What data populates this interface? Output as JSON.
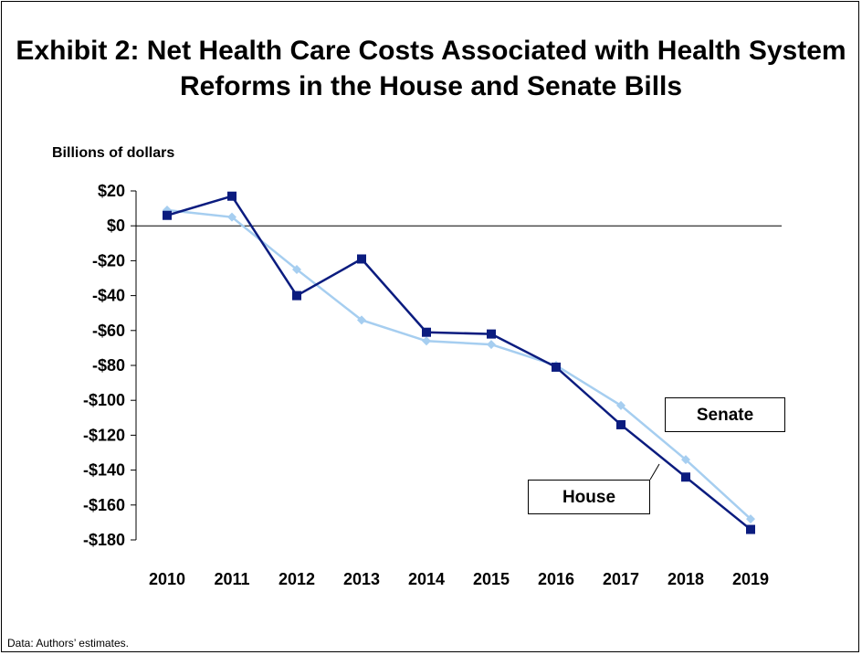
{
  "chart_data": {
    "type": "line",
    "title": "Exhibit 2: Net Health Care Costs Associated with Health System Reforms in the House and Senate Bills",
    "ylabel": "Billions of dollars",
    "xlabel": "",
    "x": [
      "2010",
      "2011",
      "2012",
      "2013",
      "2014",
      "2015",
      "2016",
      "2017",
      "2018",
      "2019"
    ],
    "ylim": [
      -180,
      20
    ],
    "yticks": [
      20,
      0,
      -20,
      -40,
      -60,
      -80,
      -100,
      -120,
      -140,
      -160,
      -180
    ],
    "ytick_labels": [
      "$20",
      "$0",
      "-$20",
      "-$40",
      "-$60",
      "-$80",
      "-$100",
      "-$120",
      "-$140",
      "-$160",
      "-$180"
    ],
    "grid": false,
    "zero_line": true,
    "series": [
      {
        "name": "Senate",
        "values": [
          9,
          5,
          -25,
          -54,
          -66,
          -68,
          -80,
          -103,
          -134,
          -168
        ],
        "color": "#a6cef0",
        "marker": "diamond"
      },
      {
        "name": "House",
        "values": [
          6,
          17,
          -40,
          -19,
          -61,
          -62,
          -81,
          -114,
          -144,
          -174
        ],
        "color": "#0b1c7f",
        "marker": "square"
      }
    ],
    "legend": "callout labels",
    "footnote": "Data: Authors’ estimates."
  }
}
